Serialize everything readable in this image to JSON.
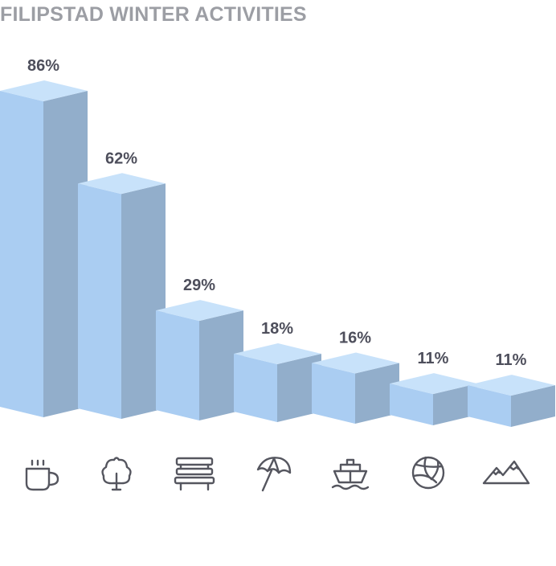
{
  "title": "FILIPSTAD WINTER ACTIVITIES",
  "colors": {
    "front": "#aacdf2",
    "top": "#c8e2fa",
    "side": "#92aecb",
    "text": "#4e4f5c",
    "title": "#9c9ea4",
    "icon": "#55565f"
  },
  "chart_data": {
    "type": "bar",
    "title": "FILIPSTAD WINTER ACTIVITIES",
    "categories": [
      "coffee-cup-icon",
      "tree-icon",
      "bench-icon",
      "beach-umbrella-icon",
      "ship-icon",
      "volleyball-icon",
      "mountains-icon"
    ],
    "values": [
      86,
      62,
      29,
      18,
      16,
      11,
      11
    ],
    "labels": [
      "86%",
      "62%",
      "29%",
      "18%",
      "16%",
      "11%",
      "11%"
    ],
    "unit": "%",
    "style": "3d-isometric",
    "grid": false,
    "legend": "none"
  }
}
